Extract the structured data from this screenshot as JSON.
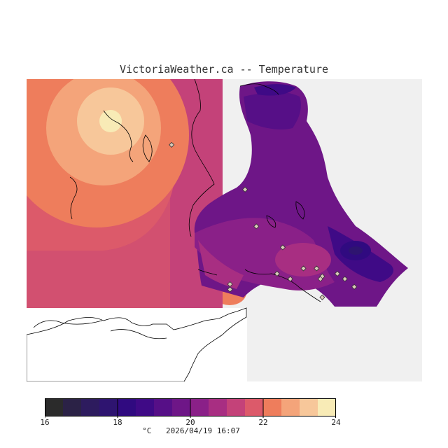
{
  "title": "VictoriaWeather.ca -- Temperature",
  "legend": {
    "unit": "°C",
    "timestamp": "2026/04/19 16:07",
    "min": 16,
    "max": 24,
    "tick_labels": [
      "16",
      "18",
      "20",
      "22",
      "24"
    ],
    "colors": [
      "#2b2b2b",
      "#2b2246",
      "#2d1b5e",
      "#2e1470",
      "#300a80",
      "#3f0a86",
      "#560f87",
      "#6e1687",
      "#8a2088",
      "#a82e82",
      "#c44279",
      "#dc5a6a",
      "#ee7d5c",
      "#f4a47a",
      "#f7c79a",
      "#f8ebb6"
    ]
  },
  "map": {
    "background_color": "#f0f0f0",
    "stations": [
      {
        "lon": -123.83,
        "lat": 48.95
      },
      {
        "lon": -123.44,
        "lat": 48.78
      },
      {
        "lon": -123.38,
        "lat": 48.64
      },
      {
        "lon": -123.52,
        "lat": 48.42
      },
      {
        "lon": -123.52,
        "lat": 48.4
      },
      {
        "lon": -123.24,
        "lat": 48.56
      },
      {
        "lon": -123.27,
        "lat": 48.46
      },
      {
        "lon": -123.2,
        "lat": 48.44
      },
      {
        "lon": -123.13,
        "lat": 48.48
      },
      {
        "lon": -123.06,
        "lat": 48.48
      },
      {
        "lon": -123.03,
        "lat": 48.45
      },
      {
        "lon": -123.04,
        "lat": 48.44
      },
      {
        "lon": -122.95,
        "lat": 48.46
      },
      {
        "lon": -122.91,
        "lat": 48.44
      },
      {
        "lon": -122.86,
        "lat": 48.41
      },
      {
        "lon": -123.03,
        "lat": 48.37
      }
    ]
  }
}
